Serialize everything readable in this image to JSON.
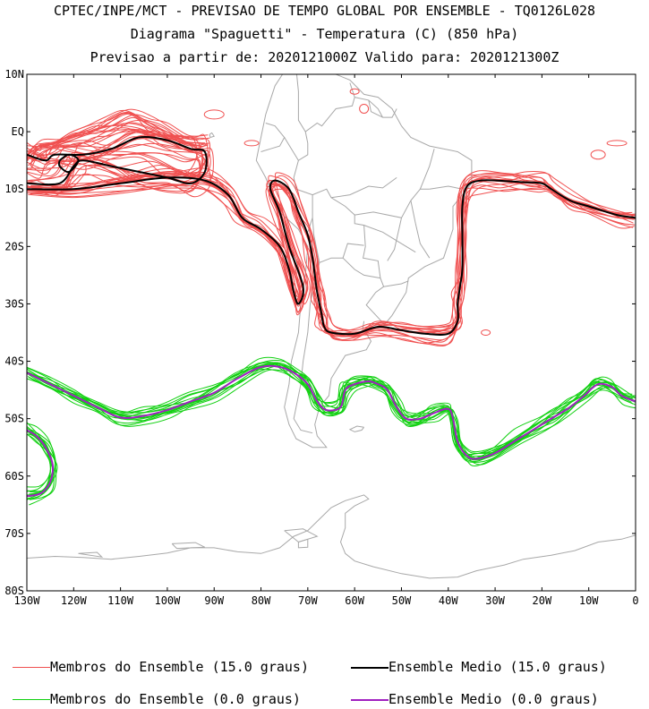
{
  "header": {
    "line1": "CPTEC/INPE/MCT - PREVISAO DE TEMPO GLOBAL POR ENSEMBLE - TQ0126L028",
    "line2": "Diagrama \"Spaguetti\" - Temperatura (C) (850 hPa)",
    "line3": "Previsao a partir de: 2020121000Z  Valido para: 2020121300Z"
  },
  "map": {
    "lon_range": [
      -130,
      0
    ],
    "lat_range": [
      -80,
      10
    ],
    "lat_labels": [
      "10N",
      "EQ",
      "10S",
      "20S",
      "30S",
      "40S",
      "50S",
      "60S",
      "70S",
      "80S"
    ],
    "lon_labels": [
      "130W",
      "120W",
      "110W",
      "100W",
      "90W",
      "80W",
      "70W",
      "60W",
      "50W",
      "40W",
      "30W",
      "20W",
      "10W",
      "0"
    ]
  },
  "legend": {
    "items": [
      {
        "label": "Membros do Ensemble (15.0 graus)",
        "color": "#f05050"
      },
      {
        "label": "Ensemble Medio (15.0 graus)",
        "color": "#000000"
      },
      {
        "label": "Membros do Ensemble (0.0 graus)",
        "color": "#10d010"
      },
      {
        "label": "Ensemble Medio (0.0 graus)",
        "color": "#a020c0"
      }
    ]
  },
  "colors": {
    "coast": "#a8a8a8",
    "member_15": "#f05050",
    "mean_15": "#000000",
    "member_0": "#10d010",
    "mean_0": "#a020c0"
  }
}
